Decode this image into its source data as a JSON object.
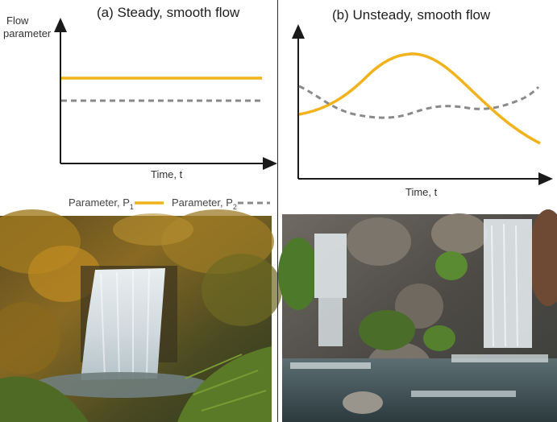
{
  "panel_a": {
    "title": "(a) Steady, smooth flow",
    "y_label_line1": "Flow",
    "y_label_line2": "parameter",
    "x_label": "Time, t"
  },
  "panel_b": {
    "title": "(b) Unsteady, smooth flow",
    "x_label": "Time, t"
  },
  "legend": {
    "p1_label": "Parameter, P",
    "p1_sub": "1",
    "p2_label": "Parameter, P",
    "p2_sub": "2"
  },
  "colors": {
    "p1": "#f2b21c",
    "p2": "#8a8a8a",
    "axis": "#1a1a1a"
  },
  "photos": {
    "left": "forest-waterfall-photo",
    "right": "rock-garden-waterfall-photo"
  }
}
